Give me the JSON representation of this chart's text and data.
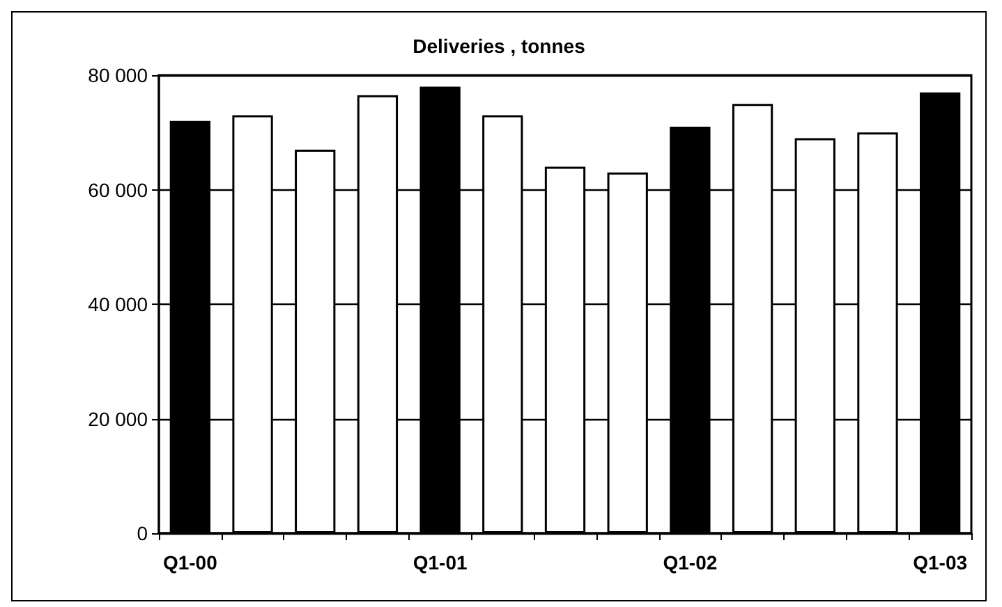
{
  "chart_data": {
    "type": "bar",
    "title": "Deliveries , tonnes",
    "categories": [
      "Q1-00",
      null,
      null,
      null,
      "Q1-01",
      null,
      null,
      null,
      "Q1-02",
      null,
      null,
      null,
      "Q1-03"
    ],
    "values": [
      72000,
      73000,
      67000,
      76500,
      78000,
      73000,
      64000,
      63000,
      71000,
      75000,
      69000,
      70000,
      77000
    ],
    "colors": [
      "#000000",
      "#ffffff",
      "#ffffff",
      "#ffffff",
      "#000000",
      "#ffffff",
      "#ffffff",
      "#ffffff",
      "#000000",
      "#ffffff",
      "#ffffff",
      "#ffffff",
      "#000000"
    ],
    "ylim": [
      0,
      80000
    ],
    "yticks": [
      {
        "value": 0,
        "label": "0"
      },
      {
        "value": 20000,
        "label": "20 000"
      },
      {
        "value": 40000,
        "label": "40 000"
      },
      {
        "value": 60000,
        "label": "60 000"
      },
      {
        "value": 80000,
        "label": "80 000"
      }
    ],
    "grid": "y"
  }
}
